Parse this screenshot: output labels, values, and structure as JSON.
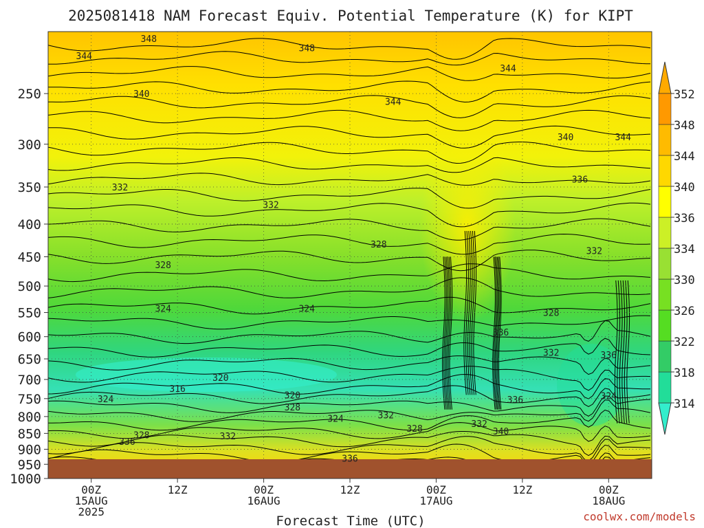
{
  "chart_data": {
    "type": "contour",
    "title": "2025081418 NAM Forecast Equiv. Potential Temperature (K) for KIPT",
    "xlabel": "Forecast Time (UTC)",
    "ylabel": "",
    "credit": "coolwx.com/models",
    "x_ticks": [
      {
        "hour": 6,
        "lines": [
          "00Z",
          "15AUG",
          "2025"
        ]
      },
      {
        "hour": 18,
        "lines": [
          "12Z"
        ]
      },
      {
        "hour": 30,
        "lines": [
          "00Z",
          "16AUG"
        ]
      },
      {
        "hour": 42,
        "lines": [
          "12Z"
        ]
      },
      {
        "hour": 54,
        "lines": [
          "00Z",
          "17AUG"
        ]
      },
      {
        "hour": 66,
        "lines": [
          "12Z"
        ]
      },
      {
        "hour": 78,
        "lines": [
          "00Z",
          "18AUG"
        ]
      }
    ],
    "x_range_hours": [
      0,
      84
    ],
    "y_ticks": [
      250,
      300,
      350,
      400,
      450,
      500,
      550,
      600,
      650,
      700,
      750,
      800,
      850,
      900,
      950,
      1000
    ],
    "y_range_hpa": [
      200,
      1000
    ],
    "colorbar": {
      "levels": [
        314,
        318,
        322,
        326,
        330,
        334,
        336,
        340,
        344,
        348,
        352
      ],
      "colors": [
        "#33eecc",
        "#22dd99",
        "#33cc66",
        "#55dd22",
        "#77e022",
        "#99e033",
        "#ccf026",
        "#ffff00",
        "#ffd800",
        "#ffbb00",
        "#ff9900",
        "#ffaa00"
      ]
    },
    "contour_labels": [
      {
        "hour": 14,
        "p": 205,
        "value": "348"
      },
      {
        "hour": 36,
        "p": 212,
        "value": "348"
      },
      {
        "hour": 5,
        "p": 218,
        "value": "344"
      },
      {
        "hour": 64,
        "p": 228,
        "value": "344"
      },
      {
        "hour": 13,
        "p": 250,
        "value": "340"
      },
      {
        "hour": 48,
        "p": 257,
        "value": "344"
      },
      {
        "hour": 72,
        "p": 292,
        "value": "340"
      },
      {
        "hour": 80,
        "p": 292,
        "value": "344"
      },
      {
        "hour": 74,
        "p": 340,
        "value": "336"
      },
      {
        "hour": 10,
        "p": 350,
        "value": "332"
      },
      {
        "hour": 31,
        "p": 373,
        "value": "332"
      },
      {
        "hour": 46,
        "p": 430,
        "value": "328"
      },
      {
        "hour": 76,
        "p": 440,
        "value": "332"
      },
      {
        "hour": 16,
        "p": 463,
        "value": "328"
      },
      {
        "hour": 16,
        "p": 542,
        "value": "324"
      },
      {
        "hour": 36,
        "p": 542,
        "value": "324"
      },
      {
        "hour": 70,
        "p": 550,
        "value": "328"
      },
      {
        "hour": 63,
        "p": 590,
        "value": "336"
      },
      {
        "hour": 70,
        "p": 635,
        "value": "332"
      },
      {
        "hour": 78,
        "p": 640,
        "value": "336"
      },
      {
        "hour": 24,
        "p": 695,
        "value": "320"
      },
      {
        "hour": 18,
        "p": 723,
        "value": "316"
      },
      {
        "hour": 34,
        "p": 740,
        "value": "320"
      },
      {
        "hour": 8,
        "p": 750,
        "value": "324"
      },
      {
        "hour": 78,
        "p": 742,
        "value": "324"
      },
      {
        "hour": 65,
        "p": 752,
        "value": "336"
      },
      {
        "hour": 34,
        "p": 773,
        "value": "328"
      },
      {
        "hour": 47,
        "p": 795,
        "value": "332"
      },
      {
        "hour": 40,
        "p": 805,
        "value": "324"
      },
      {
        "hour": 60,
        "p": 820,
        "value": "332"
      },
      {
        "hour": 51,
        "p": 835,
        "value": "328"
      },
      {
        "hour": 63,
        "p": 843,
        "value": "340"
      },
      {
        "hour": 13,
        "p": 855,
        "value": "328"
      },
      {
        "hour": 25,
        "p": 858,
        "value": "332"
      },
      {
        "hour": 11,
        "p": 875,
        "value": "336"
      },
      {
        "hour": 42,
        "p": 930,
        "value": "336"
      }
    ]
  }
}
